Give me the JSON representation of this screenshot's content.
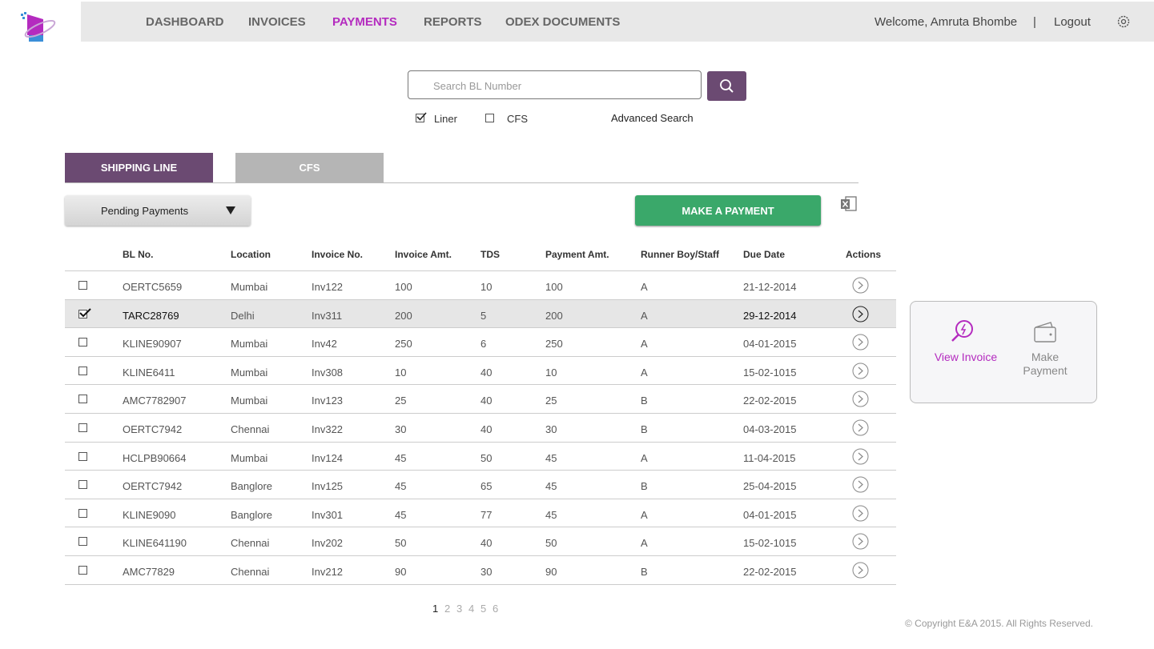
{
  "nav": {
    "items": [
      "DASHBOARD",
      "INVOICES",
      "PAYMENTS",
      "REPORTS",
      "ODEX DOCUMENTS"
    ]
  },
  "user": {
    "welcome": "Welcome, Amruta Bhombe",
    "separator": "|",
    "logout": "Logout"
  },
  "search": {
    "placeholder": "Search BL Number",
    "options": [
      "Liner",
      "CFS"
    ],
    "advanced": "Advanced Search"
  },
  "tabs": [
    "SHIPPING LINE",
    "CFS"
  ],
  "filter": "Pending Payments",
  "make_payment": "MAKE A PAYMENT",
  "table": {
    "columns": [
      "BL No.",
      "Location",
      "Invoice No.",
      "Invoice Amt.",
      "TDS",
      "Payment Amt.",
      "Runner Boy/Staff",
      "Due Date",
      "Actions"
    ],
    "rows": [
      [
        "OERTC5659",
        "Mumbai",
        "Inv122",
        "100",
        "10",
        "100",
        "A",
        "21-12-2014"
      ],
      [
        "TARC28769",
        "Delhi",
        "Inv311",
        "200",
        "5",
        "200",
        "A",
        "29-12-2014"
      ],
      [
        "KLINE90907",
        "Mumbai",
        "Inv42",
        "250",
        "6",
        "250",
        "A",
        "04-01-2015"
      ],
      [
        "KLINE6411",
        "Mumbai",
        "Inv308",
        "10",
        "40",
        "10",
        "A",
        "15-02-1015"
      ],
      [
        "AMC7782907",
        "Mumbai",
        "Inv123",
        "25",
        "40",
        "25",
        "B",
        "22-02-2015"
      ],
      [
        "OERTC7942",
        "Chennai",
        "Inv322",
        "30",
        "40",
        "30",
        "B",
        "04-03-2015"
      ],
      [
        "HCLPB90664",
        "Mumbai",
        "Inv124",
        "45",
        "50",
        "45",
        "A",
        "11-04-2015"
      ],
      [
        "OERTC7942",
        "Banglore",
        "Inv125",
        "45",
        "65",
        "45",
        "B",
        "25-04-2015"
      ],
      [
        "KLINE9090",
        "Banglore",
        "Inv301",
        "45",
        "77",
        "45",
        "A",
        "04-01-2015"
      ],
      [
        "KLINE641190",
        "Chennai",
        "Inv202",
        "50",
        "40",
        "50",
        "A",
        "15-02-1015"
      ],
      [
        "AMC77829",
        "Chennai",
        "Inv212",
        "90",
        "30",
        "90",
        "B",
        "22-02-2015"
      ]
    ]
  },
  "popup": {
    "view": "View Invoice",
    "make": "Make Payment"
  },
  "pagination": [
    "1",
    "2",
    "3",
    "4",
    "5",
    "6"
  ],
  "footer": "© Copyright E&A 2015. All Rights Reserved."
}
